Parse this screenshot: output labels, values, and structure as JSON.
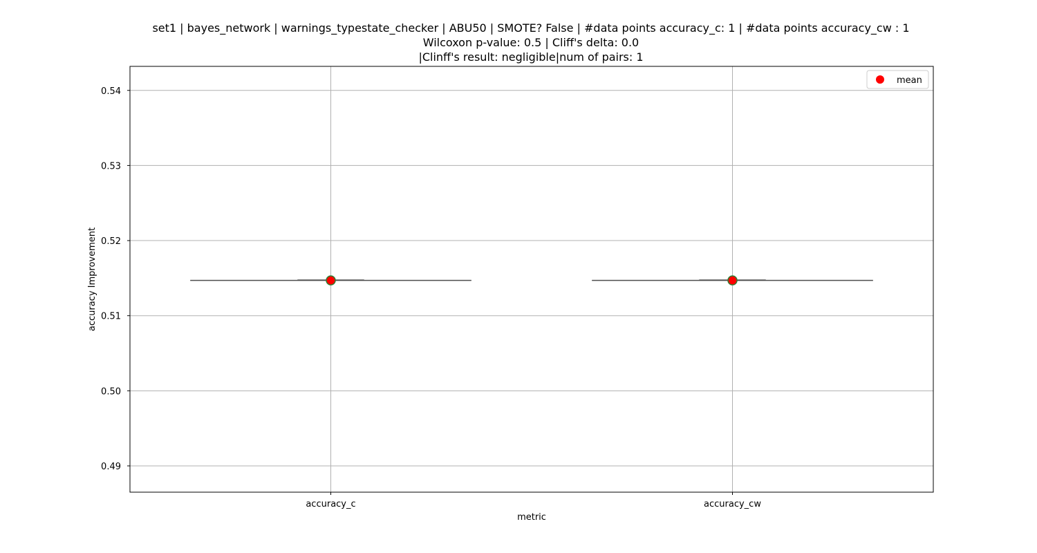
{
  "chart_data": {
    "type": "box",
    "title_lines": [
      "set1 | bayes_network | warnings_typestate_checker | ABU50 | SMOTE? False | #data points accuracy_c: 1 | #data points accuracy_cw : 1",
      "Wilcoxon p-value: 0.5 | Cliff's delta: 0.0",
      "|Clinff's result: negligible|num of pairs: 1"
    ],
    "xlabel": "metric",
    "ylabel": "accuracy Improvement",
    "categories": [
      "accuracy_c",
      "accuracy_cw"
    ],
    "values": [
      0.5147,
      0.5147
    ],
    "means": [
      0.5147,
      0.5147
    ],
    "ylim": [
      0.4865,
      0.5432
    ],
    "yticks": [
      0.49,
      0.5,
      0.51,
      0.52,
      0.53,
      0.54
    ],
    "ytick_labels": [
      "0.49",
      "0.50",
      "0.51",
      "0.52",
      "0.53",
      "0.54"
    ],
    "grid": true,
    "legend": {
      "placement": "top-right",
      "entries": [
        {
          "label": "mean",
          "color": "#ff0000"
        }
      ]
    },
    "colors": {
      "mean_marker": "#ff0000",
      "mean_marker_edge": "#2e7d32",
      "box_line": "#4d4d4d",
      "grid": "#b0b0b0",
      "axes": "#000000"
    }
  }
}
